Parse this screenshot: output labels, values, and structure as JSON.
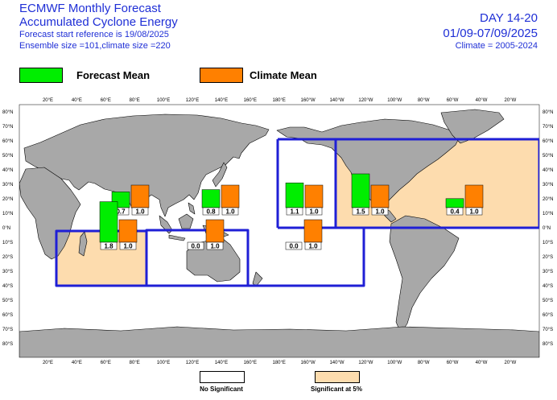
{
  "header": {
    "title_line1": "ECMWF Monthly Forecast",
    "title_line2": "Accumulated Cyclone Energy",
    "reference": "Forecast start reference is 19/08/2025",
    "ensemble": "Ensemble size =101,climate size =220",
    "day_range": "DAY 14-20",
    "date_range": "01/09-07/09/2025",
    "climate_period": "Climate = 2005-2024"
  },
  "legend": {
    "forecast_label": "Forecast Mean",
    "forecast_color": "#00ee00",
    "climate_label": "Climate Mean",
    "climate_color": "#ff8000"
  },
  "footer": {
    "no_sig_label": "No Significant",
    "sig_label": "Significant at 5%",
    "sig_color": "#fddcae"
  },
  "chart_data": {
    "type": "bar",
    "x_ticks": [
      "20°E",
      "40°E",
      "60°E",
      "80°E",
      "100°E",
      "120°E",
      "140°E",
      "160°E",
      "180°E",
      "160°W",
      "140°W",
      "120°W",
      "100°W",
      "80°W",
      "60°W",
      "40°W",
      "20°W"
    ],
    "y_ticks_left": [
      "80°N",
      "70°N",
      "60°N",
      "50°N",
      "40°N",
      "30°N",
      "20°N",
      "10°N",
      "0°N",
      "10°S",
      "20°S",
      "30°S",
      "40°S",
      "50°S",
      "60°S",
      "70°S",
      "80°S"
    ],
    "y_ticks_right": [
      "80°N",
      "70°N",
      "60°N",
      "50°N",
      "40°N",
      "30°N",
      "20°N",
      "10°N",
      "0°N",
      "10°S",
      "20°S",
      "30°S",
      "40°S",
      "50°S",
      "60°S",
      "70°S",
      "80°S"
    ],
    "regions": [
      {
        "forecast": 0.7,
        "climate": 1.0,
        "forecast_label": "0.7",
        "climate_label": "1.0",
        "significant": false
      },
      {
        "forecast": 0.8,
        "climate": 1.0,
        "forecast_label": "0.8",
        "climate_label": "1.0",
        "significant": false
      },
      {
        "forecast": 1.1,
        "climate": 1.0,
        "forecast_label": "1.1",
        "climate_label": "1.0",
        "significant": false
      },
      {
        "forecast": 1.5,
        "climate": 1.0,
        "forecast_label": "1.5",
        "climate_label": "1.0",
        "significant": true
      },
      {
        "forecast": 0.4,
        "climate": 1.0,
        "forecast_label": "0.4",
        "climate_label": "1.0",
        "significant": true
      },
      {
        "forecast": 1.8,
        "climate": 1.0,
        "forecast_label": "1.8",
        "climate_label": "1.0",
        "significant": true
      },
      {
        "forecast": 0.0,
        "climate": 1.0,
        "forecast_label": "0.0",
        "climate_label": "1.0",
        "significant": false
      },
      {
        "forecast": 0.0,
        "climate": 1.0,
        "forecast_label": "0.0",
        "climate_label": "1.0",
        "significant": false
      }
    ]
  }
}
